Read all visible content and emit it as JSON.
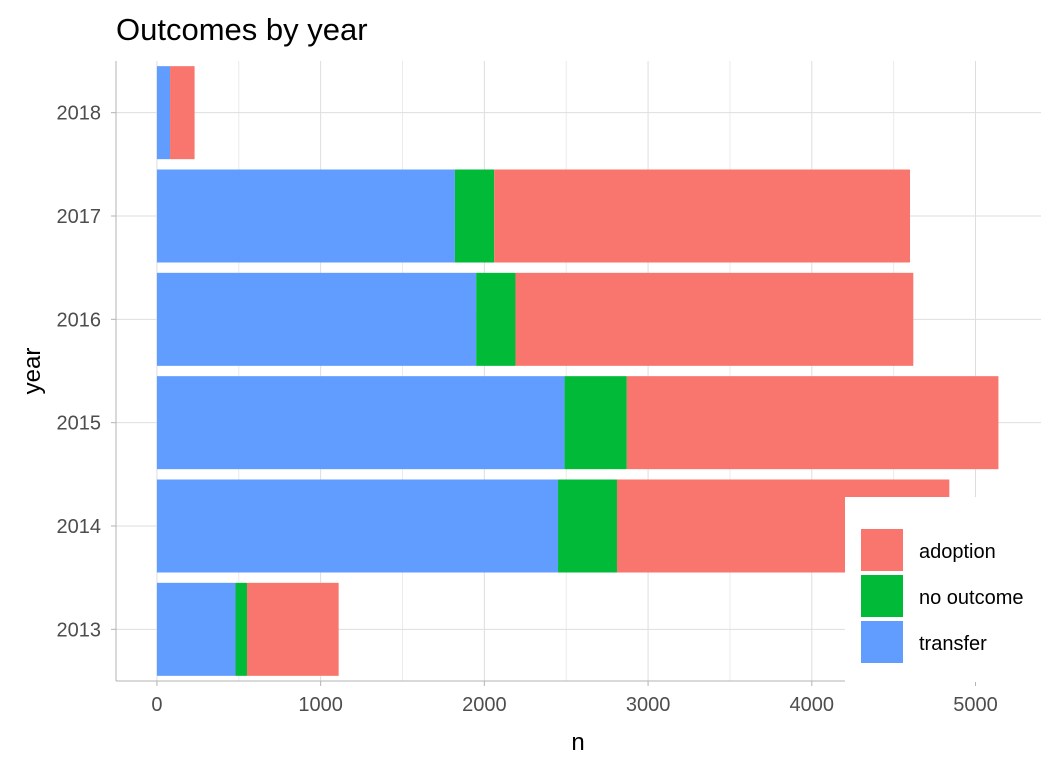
{
  "chart_data": {
    "type": "bar",
    "orientation": "horizontal",
    "stacked": true,
    "title": "Outcomes by year",
    "xlabel": "n",
    "ylabel": "year",
    "categories": [
      "2013",
      "2014",
      "2015",
      "2016",
      "2017",
      "2018"
    ],
    "x_ticks": [
      0,
      1000,
      2000,
      3000,
      4000,
      5000
    ],
    "xlim": [
      -250,
      5400
    ],
    "stack_order": [
      "transfer",
      "no outcome",
      "adoption"
    ],
    "series": [
      {
        "name": "transfer",
        "color": "#619CFF",
        "values": [
          480,
          2450,
          2490,
          1950,
          1820,
          80
        ]
      },
      {
        "name": "no outcome",
        "color": "#00BA38",
        "values": [
          70,
          360,
          380,
          240,
          240,
          0
        ]
      },
      {
        "name": "adoption",
        "color": "#F8766D",
        "values": [
          560,
          2030,
          2270,
          2430,
          2540,
          150
        ]
      }
    ],
    "legend": {
      "position": "bottom-right",
      "entries": [
        "adoption",
        "no outcome",
        "transfer"
      ]
    },
    "grid": true
  }
}
